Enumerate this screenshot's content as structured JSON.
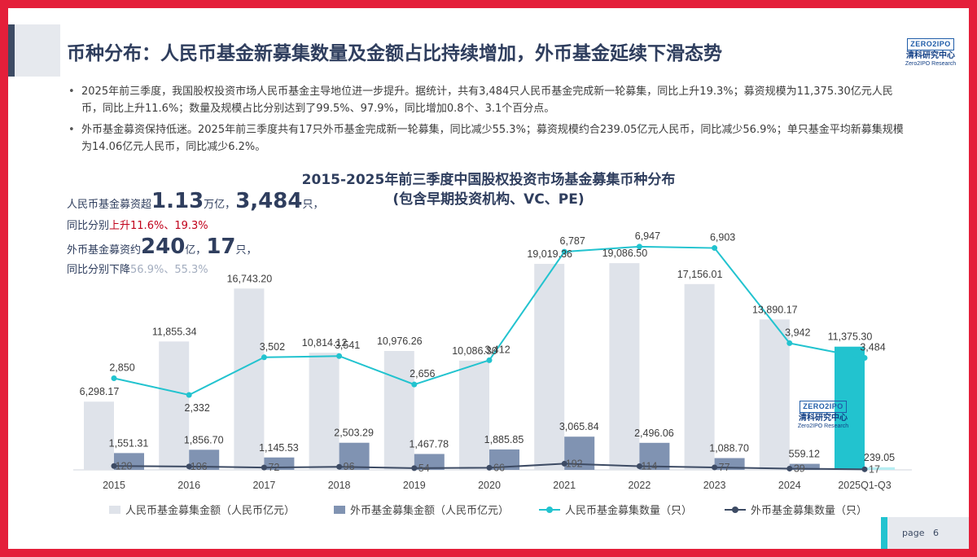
{
  "header": {
    "title": "币种分布：人民币基金新募集数量及金额占比持续增加，外币基金延续下滑态势"
  },
  "logo": {
    "mark": "ZERO2IPO",
    "name_cn": "清科研究中心",
    "name_en": "Zero2IPO Research"
  },
  "bullets": [
    "2025年前三季度，我国股权投资市场人民币基金主导地位进一步提升。据统计，共有3,484只人民币基金完成新一轮募集，同比上升19.3%；募资规模为11,375.30亿元人民币，同比上升11.6%；数量及规模占比分别达到了99.5%、97.9%，同比增加0.8个、3.1个百分点。",
    "外币基金募资保持低迷。2025年前三季度共有17只外币基金完成新一轮募集，同比减少55.3%；募资规模约合239.05亿元人民币，同比减少56.9%；单只基金平均新募集规模为14.06亿元人民币，同比减少6.2%。"
  ],
  "callouts": {
    "rmb_prefix": "人民币基金募资超",
    "rmb_amount": "1.13",
    "rmb_unit": "万亿，",
    "rmb_count": "3,484",
    "rmb_count_unit": "只，",
    "rmb_line2_prefix": "同比分别",
    "rmb_line2_change": "上升11.6%、19.3%",
    "fx_prefix": "外币基金募资约",
    "fx_amount": "240",
    "fx_unit": "亿，",
    "fx_count": "17",
    "fx_count_unit": "只，",
    "fx_line2_prefix": "同比分别下降",
    "fx_line2_change": "56.9%、55.3%"
  },
  "chart_data": {
    "type": "bar",
    "title": "2015-2025年前三季度中国股权投资市场基金募集币种分布",
    "subtitle": "(包含早期投资机构、VC、PE)",
    "categories": [
      "2015",
      "2016",
      "2017",
      "2018",
      "2019",
      "2020",
      "2021",
      "2022",
      "2023",
      "2024",
      "2025Q1-Q3"
    ],
    "series": [
      {
        "name": "人民币基金募集金额（人民币亿元）",
        "kind": "bar",
        "axis": "amount",
        "color": "#dfe3ea",
        "highlight_color": "#22c3cf",
        "highlight_index": 10,
        "values": [
          6298.17,
          11855.34,
          16743.2,
          10814.12,
          10976.26,
          10086.3,
          19019.36,
          19086.5,
          17156.01,
          13890.17,
          11375.3
        ],
        "labels": [
          "6,298.17",
          "11,855.34",
          "16,743.20",
          "10,814.12",
          "10,976.26",
          "10,086.30",
          "19,019.36",
          "19,086.50",
          "17,156.01",
          "13,890.17",
          "11,375.30"
        ]
      },
      {
        "name": "外币基金募集金额（人民币亿元）",
        "kind": "bar",
        "axis": "amount",
        "color": "#8093b2",
        "highlight_color": "#b7eef2",
        "highlight_index": 10,
        "values": [
          1551.31,
          1856.7,
          1145.53,
          2503.29,
          1467.78,
          1885.85,
          3065.84,
          2496.06,
          1088.7,
          559.12,
          239.05
        ],
        "labels": [
          "1,551.31",
          "1,856.70",
          "1,145.53",
          "2,503.29",
          "1,467.78",
          "1,885.85",
          "3,065.84",
          "2,496.06",
          "1,088.70",
          "559.12",
          "239.05"
        ]
      },
      {
        "name": "人民币基金募集数量（只）",
        "kind": "line",
        "axis": "count",
        "color": "#22c3cf",
        "values": [
          2850,
          2332,
          3502,
          3541,
          2656,
          3412,
          6787,
          6947,
          6903,
          3942,
          3484
        ],
        "labels": [
          "2,850",
          "2,332",
          "3,502",
          "3,541",
          "2,656",
          "3,412",
          "6,787",
          "6,947",
          "6,903",
          "3,942",
          "3,484"
        ]
      },
      {
        "name": "外币基金募集数量（只）",
        "kind": "line",
        "axis": "count",
        "color": "#3d4b64",
        "values": [
          120,
          106,
          72,
          96,
          54,
          66,
          192,
          114,
          77,
          39,
          17
        ],
        "labels": [
          "120",
          "106",
          "72",
          "96",
          "54",
          "66",
          "192",
          "114",
          "77",
          "39",
          "17"
        ]
      }
    ],
    "amount_ylim": [
      0,
      20000
    ],
    "count_ylim": [
      0,
      7500
    ],
    "grid": false,
    "legend_position": "bottom"
  },
  "footer": {
    "page_label": "page",
    "page_number": "6"
  }
}
